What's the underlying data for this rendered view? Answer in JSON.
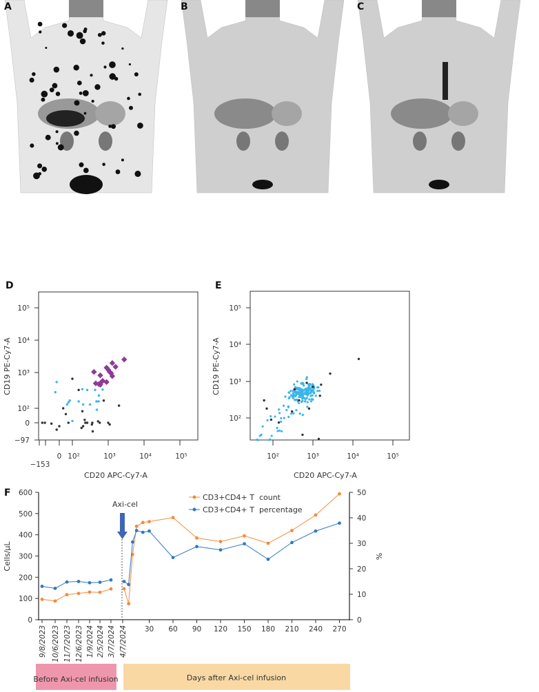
{
  "panel_labels": [
    "A",
    "B",
    "C",
    "D",
    "E",
    "F"
  ],
  "colors": {
    "count": "#f58a3c",
    "percentage": "#2f78c4",
    "flow_blue": "#3bb5ea",
    "flow_purple": "#8e3b96",
    "flow_black": "#333333",
    "arrow": "#3f66b3",
    "before_box": "#ee97ac",
    "after_box": "#f9d8a4"
  },
  "chart_data": [
    {
      "panel": "D",
      "type": "scatter",
      "xlabel": "CD20 APC-Cy7-A",
      "ylabel": "CD19 PE-Cy7-A",
      "xticks": [
        "−153",
        "0",
        "10²",
        "10³",
        "10⁴",
        "10⁵"
      ],
      "yticks": [
        "10⁵",
        "10⁴",
        "10³",
        "10²",
        "0",
        "−97"
      ],
      "series": [
        {
          "name": "purple",
          "points": [
            [
              400,
              1200
            ],
            [
              600,
              950
            ],
            [
              450,
              550
            ],
            [
              650,
              600
            ],
            [
              600,
              500
            ],
            [
              900,
              1600
            ],
            [
              1000,
              1400
            ],
            [
              1100,
              1200
            ],
            [
              1200,
              1100
            ],
            [
              1300,
              2200
            ],
            [
              1300,
              900
            ],
            [
              1600,
              1700
            ],
            [
              2800,
              2800
            ],
            [
              900,
              600
            ],
            [
              700,
              650
            ],
            [
              550,
              520
            ]
          ]
        },
        {
          "name": "blue",
          "points": [
            [
              -30,
              300
            ],
            [
              -20,
              600
            ],
            [
              70,
              150
            ],
            [
              60,
              130
            ],
            [
              80,
              170
            ],
            [
              150,
              160
            ],
            [
              200,
              130
            ],
            [
              190,
              370
            ],
            [
              260,
              350
            ],
            [
              310,
              130
            ],
            [
              430,
              350
            ],
            [
              470,
              160
            ],
            [
              480,
              90
            ],
            [
              540,
              160
            ],
            [
              550,
              240
            ],
            [
              700,
              360
            ],
            [
              100,
              -10
            ]
          ]
        },
        {
          "name": "black",
          "points": [
            [
              -130,
              0
            ],
            [
              -110,
              0
            ],
            [
              -60,
              -5
            ],
            [
              -20,
              -40
            ],
            [
              0,
              -20
            ],
            [
              30,
              100
            ],
            [
              50,
              60
            ],
            [
              100,
              750
            ],
            [
              150,
              350
            ],
            [
              70,
              0
            ],
            [
              190,
              80
            ],
            [
              220,
              20
            ],
            [
              200,
              -20
            ],
            [
              230,
              0
            ],
            [
              260,
              0
            ],
            [
              360,
              0
            ],
            [
              350,
              -10
            ],
            [
              180,
              -30
            ],
            [
              370,
              -50
            ],
            [
              520,
              10
            ],
            [
              580,
              0
            ],
            [
              750,
              170
            ],
            [
              1000,
              0
            ],
            [
              1100,
              -10
            ],
            [
              2000,
              120
            ]
          ]
        }
      ]
    },
    {
      "panel": "E",
      "type": "scatter",
      "xlabel": "CD20 APC-Cy7-A",
      "ylabel": "CD19 PE-Cy7-A",
      "xticks": [
        "10²",
        "10³",
        "10⁴",
        "10⁵"
      ],
      "yticks": [
        "10⁵",
        "10⁴",
        "10³",
        "10²"
      ],
      "series": [
        {
          "name": "black",
          "points": [
            [
              14000,
              4000
            ],
            [
              2700,
              1600
            ],
            [
              1600,
              800
            ],
            [
              1500,
              400
            ],
            [
              60,
              300
            ],
            [
              70,
              180
            ],
            [
              90,
              90
            ],
            [
              140,
              75
            ],
            [
              550,
              35
            ],
            [
              1400,
              27
            ],
            [
              800,
              180
            ],
            [
              300,
              150
            ],
            [
              450,
              300
            ],
            [
              700,
              900
            ],
            [
              350,
              600
            ],
            [
              1000,
              700
            ]
          ]
        }
      ]
    },
    {
      "panel": "F",
      "type": "line",
      "ylabel": "Cells/µL",
      "y2label": "%",
      "ylim": [
        0,
        600
      ],
      "y2lim": [
        0,
        50
      ],
      "yticks": [
        "0",
        "100",
        "200",
        "300",
        "400",
        "500",
        "600"
      ],
      "y2ticks": [
        "0",
        "10",
        "20",
        "30",
        "40",
        "50"
      ],
      "annotation": "Axi-cel",
      "pre_dates": [
        "9/8/2023",
        "10/6/2023",
        "11/7/2023",
        "12/6/2023",
        "1/9/2024",
        "2/5/2024",
        "3/7/2024",
        "4/7/2024"
      ],
      "day_ticks": [
        "30",
        "60",
        "90",
        "120",
        "150",
        "180",
        "210",
        "240",
        "270"
      ],
      "post_days": [
        0,
        4,
        9,
        14,
        22,
        30,
        60,
        90,
        120,
        150,
        180,
        210,
        240,
        270
      ],
      "series": [
        {
          "name": "CD3+CD4+ T  count",
          "axis": "left",
          "pre": [
            96,
            88,
            118,
            124,
            130,
            129,
            145
          ],
          "post": [
            146,
            75,
            307,
            440,
            458,
            462,
            481,
            385,
            368,
            395,
            360,
            420,
            493,
            593
          ]
        },
        {
          "name": "CD3+CD4+ T  percentage",
          "axis": "right",
          "pre": [
            13.1,
            12.3,
            14.8,
            15.0,
            14.5,
            14.7,
            15.6
          ],
          "post": [
            15.0,
            13.8,
            30.5,
            35.0,
            34.3,
            34.8,
            24.4,
            28.7,
            27.4,
            29.8,
            23.7,
            30.3,
            34.8,
            37.9
          ]
        }
      ],
      "phases": [
        "Before Axi-cel infusion",
        "Days after Axi-cel infusion"
      ]
    }
  ]
}
